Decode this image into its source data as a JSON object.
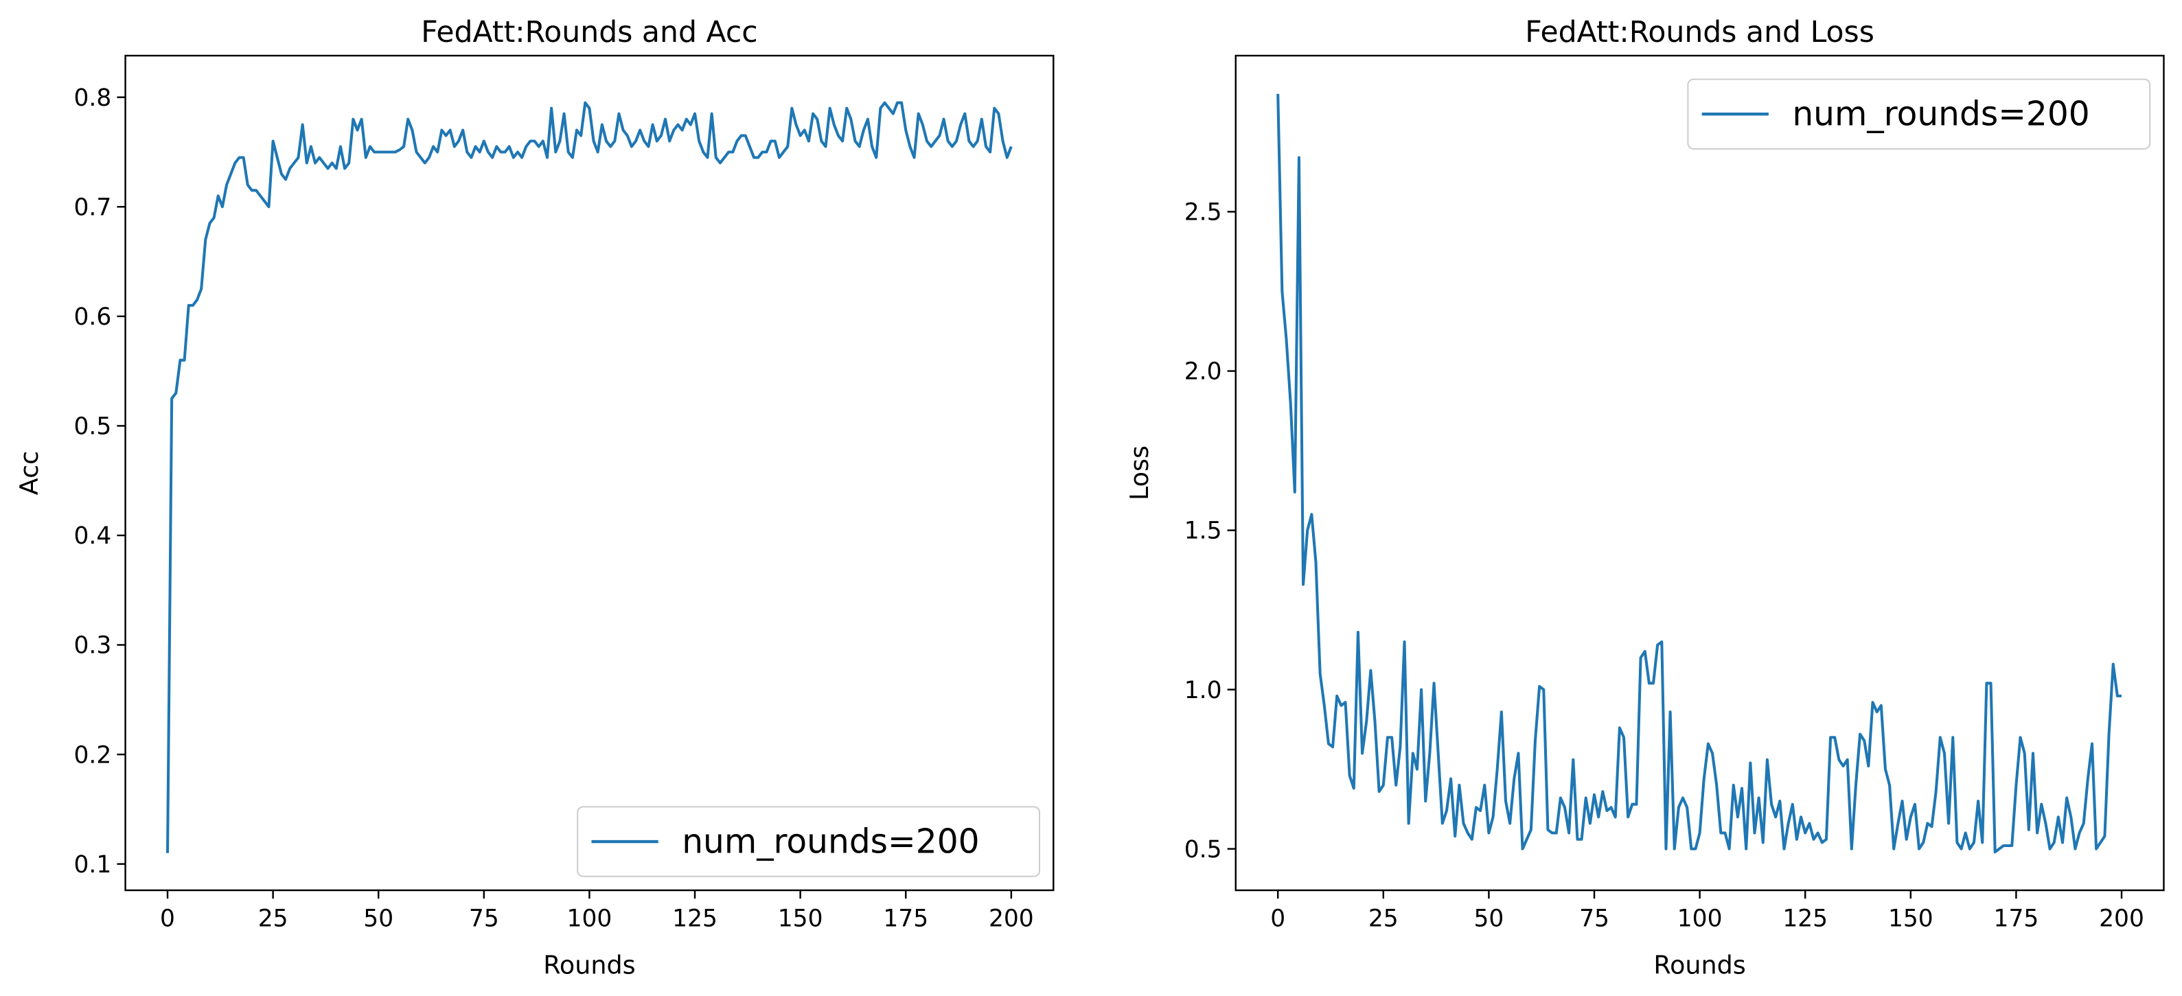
{
  "chart_data": [
    {
      "type": "line",
      "title": "FedAtt:Rounds and Acc",
      "x_label": "Rounds",
      "y_label": "Acc",
      "legend": "lower right",
      "xlim": [
        -10,
        210
      ],
      "ylim": [
        0.076,
        0.838
      ],
      "xticks": [
        0,
        25,
        50,
        75,
        100,
        125,
        150,
        175,
        200
      ],
      "yticks": [
        0.1,
        0.2,
        0.3,
        0.4,
        0.5,
        0.6,
        0.7,
        0.8
      ],
      "x": [
        0,
        1,
        2,
        3,
        4,
        5,
        6,
        7,
        8,
        9,
        10,
        11,
        12,
        13,
        14,
        15,
        16,
        17,
        18,
        19,
        20,
        21,
        22,
        23,
        24,
        25,
        26,
        27,
        28,
        29,
        30,
        31,
        32,
        33,
        34,
        35,
        36,
        37,
        38,
        39,
        40,
        41,
        42,
        43,
        44,
        45,
        46,
        47,
        48,
        49,
        50,
        51,
        52,
        53,
        54,
        55,
        56,
        57,
        58,
        59,
        60,
        61,
        62,
        63,
        64,
        65,
        66,
        67,
        68,
        69,
        70,
        71,
        72,
        73,
        74,
        75,
        76,
        77,
        78,
        79,
        80,
        81,
        82,
        83,
        84,
        85,
        86,
        87,
        88,
        89,
        90,
        91,
        92,
        93,
        94,
        95,
        96,
        97,
        98,
        99,
        100,
        101,
        102,
        103,
        104,
        105,
        106,
        107,
        108,
        109,
        110,
        111,
        112,
        113,
        114,
        115,
        116,
        117,
        118,
        119,
        120,
        121,
        122,
        123,
        124,
        125,
        126,
        127,
        128,
        129,
        130,
        131,
        132,
        133,
        134,
        135,
        136,
        137,
        138,
        139,
        140,
        141,
        142,
        143,
        144,
        145,
        146,
        147,
        148,
        149,
        150,
        151,
        152,
        153,
        154,
        155,
        156,
        157,
        158,
        159,
        160,
        161,
        162,
        163,
        164,
        165,
        166,
        167,
        168,
        169,
        170,
        171,
        172,
        173,
        174,
        175,
        176,
        177,
        178,
        179,
        180,
        181,
        182,
        183,
        184,
        185,
        186,
        187,
        188,
        189,
        190,
        191,
        192,
        193,
        194,
        195,
        196,
        197,
        198,
        199,
        200
      ],
      "series": [
        {
          "name": "num_rounds=200",
          "color": "#1f77b4",
          "values": [
            0.11,
            0.525,
            0.53,
            0.56,
            0.56,
            0.61,
            0.61,
            0.615,
            0.625,
            0.67,
            0.685,
            0.69,
            0.71,
            0.7,
            0.72,
            0.73,
            0.74,
            0.745,
            0.745,
            0.72,
            0.715,
            0.715,
            0.71,
            0.705,
            0.7,
            0.76,
            0.745,
            0.73,
            0.725,
            0.735,
            0.74,
            0.745,
            0.775,
            0.74,
            0.755,
            0.74,
            0.745,
            0.74,
            0.735,
            0.74,
            0.735,
            0.755,
            0.735,
            0.74,
            0.78,
            0.77,
            0.78,
            0.745,
            0.755,
            0.75,
            0.75,
            0.75,
            0.75,
            0.75,
            0.75,
            0.752,
            0.755,
            0.78,
            0.77,
            0.75,
            0.745,
            0.74,
            0.745,
            0.755,
            0.75,
            0.77,
            0.765,
            0.77,
            0.755,
            0.76,
            0.77,
            0.75,
            0.745,
            0.755,
            0.75,
            0.76,
            0.75,
            0.745,
            0.755,
            0.75,
            0.75,
            0.755,
            0.745,
            0.75,
            0.745,
            0.755,
            0.76,
            0.76,
            0.755,
            0.76,
            0.745,
            0.79,
            0.75,
            0.76,
            0.785,
            0.75,
            0.745,
            0.77,
            0.765,
            0.795,
            0.79,
            0.76,
            0.75,
            0.775,
            0.76,
            0.755,
            0.76,
            0.785,
            0.77,
            0.765,
            0.755,
            0.76,
            0.77,
            0.76,
            0.755,
            0.775,
            0.76,
            0.765,
            0.78,
            0.76,
            0.77,
            0.775,
            0.77,
            0.78,
            0.775,
            0.785,
            0.76,
            0.75,
            0.745,
            0.785,
            0.745,
            0.74,
            0.745,
            0.75,
            0.75,
            0.76,
            0.765,
            0.765,
            0.755,
            0.745,
            0.745,
            0.75,
            0.75,
            0.76,
            0.76,
            0.745,
            0.75,
            0.755,
            0.79,
            0.775,
            0.765,
            0.77,
            0.76,
            0.785,
            0.78,
            0.76,
            0.755,
            0.79,
            0.775,
            0.765,
            0.76,
            0.79,
            0.78,
            0.76,
            0.755,
            0.77,
            0.78,
            0.755,
            0.745,
            0.79,
            0.795,
            0.79,
            0.785,
            0.795,
            0.795,
            0.77,
            0.755,
            0.745,
            0.785,
            0.775,
            0.76,
            0.755,
            0.76,
            0.765,
            0.78,
            0.76,
            0.755,
            0.76,
            0.775,
            0.785,
            0.76,
            0.755,
            0.76,
            0.78,
            0.755,
            0.75,
            0.79,
            0.785,
            0.76,
            0.745,
            0.755
          ]
        }
      ]
    },
    {
      "type": "line",
      "title": "FedAtt:Rounds and Loss",
      "x_label": "Rounds",
      "y_label": "Loss",
      "legend": "upper right",
      "xlim": [
        -10,
        210
      ],
      "ylim": [
        0.37,
        2.99
      ],
      "xticks": [
        0,
        25,
        50,
        75,
        100,
        125,
        150,
        175,
        200
      ],
      "yticks": [
        0.5,
        {
          "value": 1,
          "label": "1.0"
        },
        1.5,
        {
          "value": 2,
          "label": "2.0"
        },
        2.5
      ],
      "x": [
        0,
        1,
        2,
        3,
        4,
        5,
        6,
        7,
        8,
        9,
        10,
        11,
        12,
        13,
        14,
        15,
        16,
        17,
        18,
        19,
        20,
        21,
        22,
        23,
        24,
        25,
        26,
        27,
        28,
        29,
        30,
        31,
        32,
        33,
        34,
        35,
        36,
        37,
        38,
        39,
        40,
        41,
        42,
        43,
        44,
        45,
        46,
        47,
        48,
        49,
        50,
        51,
        52,
        53,
        54,
        55,
        56,
        57,
        58,
        59,
        60,
        61,
        62,
        63,
        64,
        65,
        66,
        67,
        68,
        69,
        70,
        71,
        72,
        73,
        74,
        75,
        76,
        77,
        78,
        79,
        80,
        81,
        82,
        83,
        84,
        85,
        86,
        87,
        88,
        89,
        90,
        91,
        92,
        93,
        94,
        95,
        96,
        97,
        98,
        99,
        100,
        101,
        102,
        103,
        104,
        105,
        106,
        107,
        108,
        109,
        110,
        111,
        112,
        113,
        114,
        115,
        116,
        117,
        118,
        119,
        120,
        121,
        122,
        123,
        124,
        125,
        126,
        127,
        128,
        129,
        130,
        131,
        132,
        133,
        134,
        135,
        136,
        137,
        138,
        139,
        140,
        141,
        142,
        143,
        144,
        145,
        146,
        147,
        148,
        149,
        150,
        151,
        152,
        153,
        154,
        155,
        156,
        157,
        158,
        159,
        160,
        161,
        162,
        163,
        164,
        165,
        166,
        167,
        168,
        169,
        170,
        171,
        172,
        173,
        174,
        175,
        176,
        177,
        178,
        179,
        180,
        181,
        182,
        183,
        184,
        185,
        186,
        187,
        188,
        189,
        190,
        191,
        192,
        193,
        194,
        195,
        196,
        197,
        198,
        199,
        200
      ],
      "series": [
        {
          "name": "num_rounds=200",
          "color": "#1f77b4",
          "values": [
            2.87,
            2.25,
            2.1,
            1.9,
            1.62,
            2.67,
            1.33,
            1.5,
            1.55,
            1.4,
            1.05,
            0.95,
            0.83,
            0.82,
            0.98,
            0.95,
            0.96,
            0.73,
            0.69,
            1.18,
            0.8,
            0.9,
            1.06,
            0.9,
            0.68,
            0.7,
            0.85,
            0.85,
            0.7,
            0.82,
            1.15,
            0.58,
            0.8,
            0.75,
            1.0,
            0.65,
            0.8,
            1.02,
            0.8,
            0.58,
            0.62,
            0.72,
            0.54,
            0.7,
            0.58,
            0.55,
            0.53,
            0.63,
            0.62,
            0.7,
            0.55,
            0.6,
            0.75,
            0.93,
            0.65,
            0.58,
            0.72,
            0.8,
            0.5,
            0.53,
            0.56,
            0.84,
            1.01,
            1.0,
            0.56,
            0.55,
            0.55,
            0.66,
            0.63,
            0.55,
            0.78,
            0.53,
            0.53,
            0.66,
            0.58,
            0.67,
            0.6,
            0.68,
            0.62,
            0.63,
            0.6,
            0.88,
            0.85,
            0.6,
            0.64,
            0.64,
            1.1,
            1.12,
            1.02,
            1.02,
            1.14,
            1.15,
            0.5,
            0.93,
            0.5,
            0.63,
            0.66,
            0.63,
            0.5,
            0.5,
            0.55,
            0.72,
            0.83,
            0.8,
            0.7,
            0.55,
            0.55,
            0.5,
            0.7,
            0.6,
            0.69,
            0.5,
            0.77,
            0.55,
            0.66,
            0.52,
            0.78,
            0.64,
            0.6,
            0.65,
            0.5,
            0.58,
            0.64,
            0.53,
            0.6,
            0.55,
            0.58,
            0.53,
            0.55,
            0.52,
            0.53,
            0.85,
            0.85,
            0.78,
            0.76,
            0.78,
            0.5,
            0.7,
            0.86,
            0.84,
            0.76,
            0.96,
            0.93,
            0.95,
            0.75,
            0.7,
            0.5,
            0.58,
            0.65,
            0.53,
            0.6,
            0.64,
            0.5,
            0.52,
            0.58,
            0.57,
            0.68,
            0.85,
            0.8,
            0.58,
            0.85,
            0.52,
            0.5,
            0.55,
            0.5,
            0.52,
            0.65,
            0.52,
            1.02,
            1.02,
            0.49,
            0.5,
            0.51,
            0.51,
            0.51,
            0.7,
            0.85,
            0.8,
            0.56,
            0.8,
            0.55,
            0.64,
            0.58,
            0.5,
            0.52,
            0.6,
            0.52,
            0.66,
            0.6,
            0.5,
            0.55,
            0.58,
            0.72,
            0.83,
            0.5,
            0.52,
            0.54,
            0.86,
            1.08,
            0.98,
            0.98
          ]
        }
      ]
    }
  ]
}
